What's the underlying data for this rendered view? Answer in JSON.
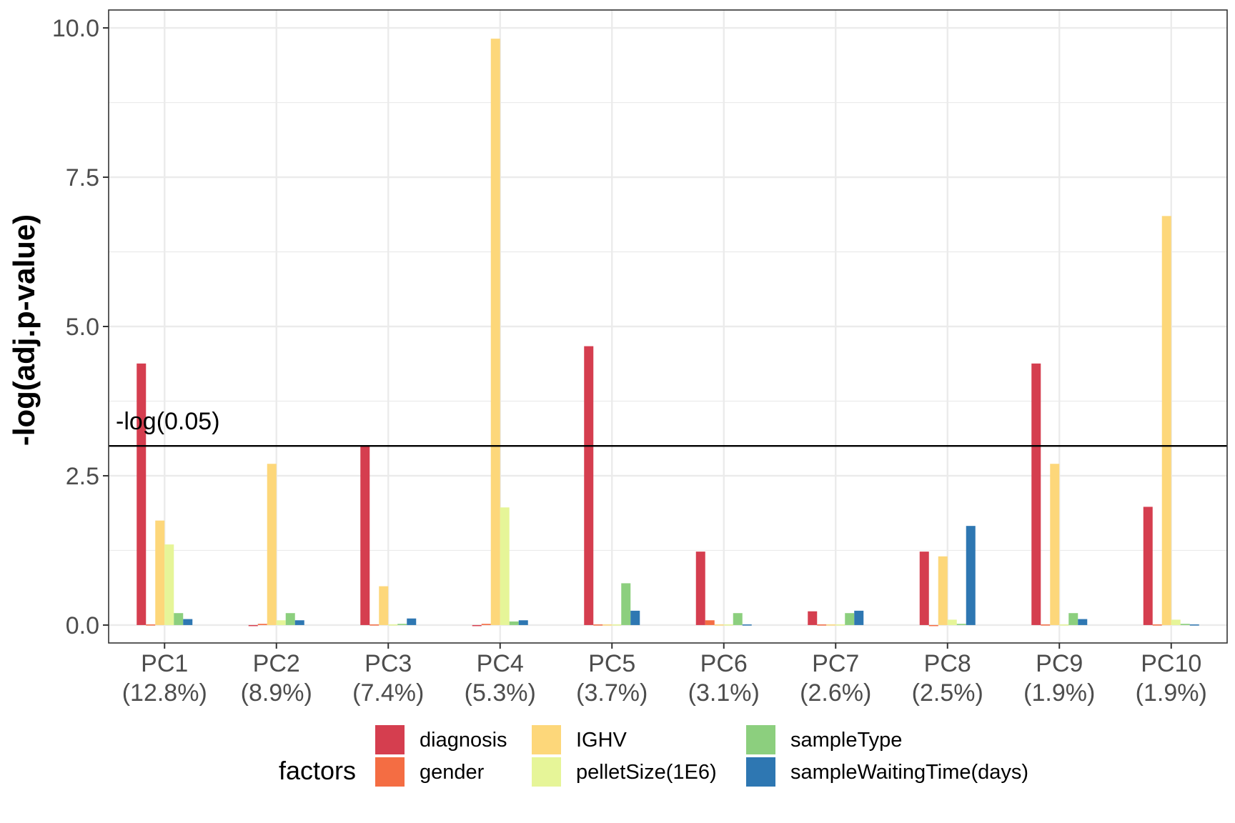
{
  "chart_data": {
    "type": "bar",
    "ylabel": "-log(adj.p-value)",
    "xlabel": "",
    "ylim": [
      -0.3,
      10.3
    ],
    "yticks": [
      "0.0",
      "2.5",
      "5.0",
      "7.5",
      "10.0"
    ],
    "grid": true,
    "legend_position": "bottom",
    "legend_title": "factors",
    "categories": [
      {
        "name": "PC1",
        "variance": "(12.8%)"
      },
      {
        "name": "PC2",
        "variance": "(8.9%)"
      },
      {
        "name": "PC3",
        "variance": "(7.4%)"
      },
      {
        "name": "PC4",
        "variance": "(5.3%)"
      },
      {
        "name": "PC5",
        "variance": "(3.7%)"
      },
      {
        "name": "PC6",
        "variance": "(3.1%)"
      },
      {
        "name": "PC7",
        "variance": "(2.6%)"
      },
      {
        "name": "PC8",
        "variance": "(2.5%)"
      },
      {
        "name": "PC9",
        "variance": "(1.9%)"
      },
      {
        "name": "PC10",
        "variance": "(1.9%)"
      }
    ],
    "series": [
      {
        "name": "diagnosis",
        "color": "#D53E4F",
        "values": [
          4.38,
          0.0,
          3.0,
          0.0,
          4.67,
          1.23,
          0.23,
          1.23,
          4.38,
          1.98
        ]
      },
      {
        "name": "gender",
        "color": "#F46D43",
        "values": [
          0.01,
          0.02,
          0.01,
          0.02,
          0.01,
          0.08,
          0.01,
          0.0,
          0.01,
          0.01
        ]
      },
      {
        "name": "IGHV",
        "color": "#FDD77A",
        "values": [
          1.75,
          2.7,
          0.65,
          9.82,
          0.01,
          0.01,
          0.01,
          1.15,
          2.7,
          6.85
        ]
      },
      {
        "name": "pelletSize(1E6)",
        "color": "#E6F598",
        "values": [
          1.35,
          0.08,
          0.01,
          1.97,
          0.01,
          0.01,
          0.01,
          0.09,
          0.01,
          0.09
        ]
      },
      {
        "name": "sampleType",
        "color": "#8CCF7E",
        "values": [
          0.2,
          0.2,
          0.02,
          0.06,
          0.7,
          0.2,
          0.2,
          0.02,
          0.2,
          0.02
        ]
      },
      {
        "name": "sampleWaitingTime(days)",
        "color": "#2E77B2",
        "values": [
          0.1,
          0.08,
          0.11,
          0.08,
          0.24,
          0.01,
          0.24,
          1.66,
          0.1,
          0.01
        ]
      }
    ],
    "threshold": {
      "value": 3.0,
      "label": "-log(0.05)"
    }
  }
}
